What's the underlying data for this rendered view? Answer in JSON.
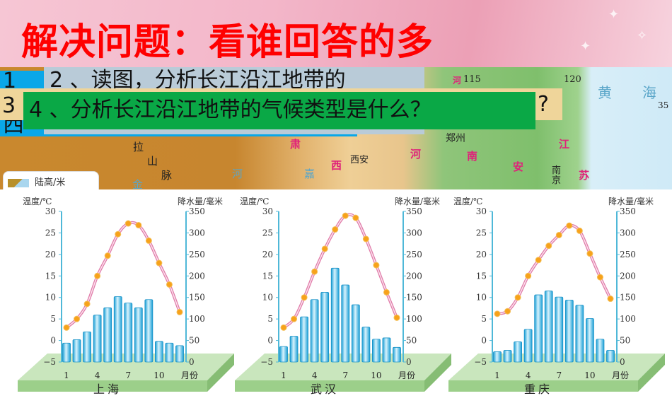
{
  "slide": {
    "title": "解决问题：看谁回答的多",
    "questions": [
      {
        "number": "1",
        "tail": "西"
      },
      {
        "text": "2 、读图，分析长江沿江地带的"
      },
      {
        "number": "3",
        "tail": "?"
      },
      {
        "text": "4 、分析长江沿江地带的气候类型是什么？"
      }
    ]
  },
  "map": {
    "labels": [
      "河",
      "115",
      "120",
      "黄",
      "海",
      "35",
      "郑州",
      "西安",
      "拉",
      "山",
      "脉",
      "肃",
      "西",
      "河",
      "南",
      "安",
      "江",
      "苏",
      "南京",
      "金",
      "河",
      "嘉"
    ],
    "legend_title": "陆高/米"
  },
  "colors": {
    "bar": "#2cb5e8",
    "line": "#e07aa8",
    "marker": "#f7a21b",
    "axis": "#4fb8d8",
    "platform": "#9ccf8a"
  },
  "chart_data": [
    {
      "type": "bar+line",
      "title": "上海",
      "ylabel_left": "温度/℃",
      "ylabel_right": "降水量/毫米",
      "xlabel": "月份",
      "x": [
        1,
        2,
        3,
        4,
        5,
        6,
        7,
        8,
        9,
        10,
        11,
        12
      ],
      "x_tick_labels": [
        "1",
        "4",
        "7",
        "10"
      ],
      "y_left_ticks": [
        "30",
        "25",
        "20",
        "15",
        "10",
        "5",
        "0",
        "−5"
      ],
      "y_right_ticks": [
        "350",
        "300",
        "250",
        "200",
        "150",
        "100",
        "50",
        "0"
      ],
      "ylim_left": [
        -5,
        30
      ],
      "ylim_right": [
        0,
        350
      ],
      "temperature": [
        3,
        5,
        8.5,
        15,
        19.7,
        24.7,
        27.2,
        26.8,
        23.2,
        18,
        13,
        6.6
      ],
      "precipitation": [
        44,
        52,
        70,
        109,
        126,
        152,
        137,
        126,
        145,
        48,
        44,
        38
      ]
    },
    {
      "type": "bar+line",
      "title": "武汉",
      "ylabel_left": "温度/℃",
      "ylabel_right": "降水量/毫米",
      "xlabel": "月份",
      "x": [
        1,
        2,
        3,
        4,
        5,
        6,
        7,
        8,
        9,
        10,
        11,
        12
      ],
      "x_tick_labels": [
        "1",
        "4",
        "7",
        "10"
      ],
      "y_left_ticks": [
        "30",
        "25",
        "20",
        "15",
        "10",
        "5",
        "0",
        "−5"
      ],
      "y_right_ticks": [
        "350",
        "300",
        "250",
        "200",
        "150",
        "100",
        "50",
        "0"
      ],
      "ylim_left": [
        -5,
        30
      ],
      "ylim_right": [
        0,
        350
      ],
      "temperature": [
        3,
        5,
        10,
        16,
        21.3,
        25.8,
        29,
        28.5,
        23.6,
        17.5,
        11.2,
        5.3
      ],
      "precipitation": [
        36,
        60,
        105,
        145,
        162,
        218,
        179,
        133,
        81,
        53,
        56,
        34
      ]
    },
    {
      "type": "bar+line",
      "title": "重庆",
      "ylabel_left": "温度/℃",
      "ylabel_right": "降水量/毫米",
      "xlabel": "月份",
      "x": [
        1,
        2,
        3,
        4,
        5,
        6,
        7,
        8,
        9,
        10,
        11,
        12
      ],
      "x_tick_labels": [
        "1",
        "4",
        "7",
        "10"
      ],
      "y_left_ticks": [
        "30",
        "25",
        "20",
        "15",
        "10",
        "5",
        "0",
        "−5"
      ],
      "y_right_ticks": [
        "350",
        "300",
        "250",
        "200",
        "150",
        "100",
        "50",
        "0"
      ],
      "ylim_left": [
        -5,
        30
      ],
      "ylim_right": [
        0,
        350
      ],
      "temperature": [
        6.2,
        6.8,
        10,
        15,
        18.7,
        22,
        24.5,
        26.7,
        25.5,
        20.2,
        14.7,
        9.7
      ],
      "precipitation": [
        24,
        27,
        47,
        76,
        156,
        165,
        151,
        144,
        132,
        101,
        53,
        27
      ]
    }
  ]
}
